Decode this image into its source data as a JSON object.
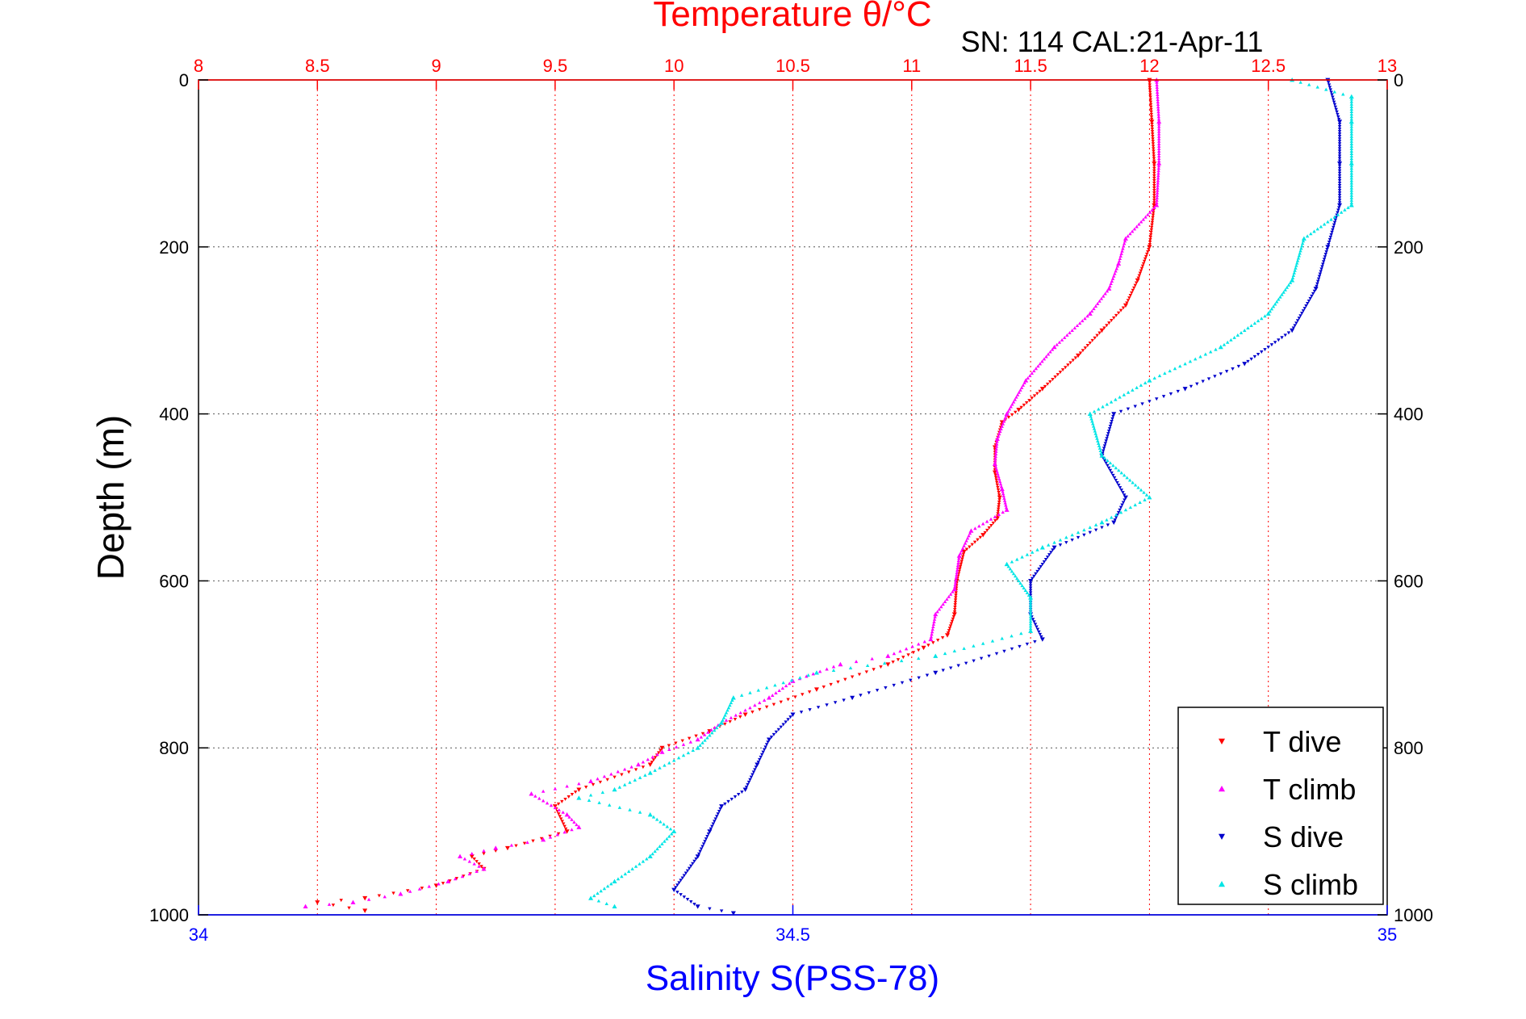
{
  "chart_data": {
    "type": "scatter",
    "title_top": "Temperature θ/°C",
    "subtitle": "SN: 114  CAL:21-Apr-11",
    "ylabel": "Depth (m)",
    "xlabel_bottom": "Salinity S(PSS-78)",
    "y_axis": {
      "range": [
        0,
        1000
      ],
      "reversed": true,
      "ticks": [
        0,
        200,
        400,
        600,
        800,
        1000
      ]
    },
    "x_top": {
      "range": [
        8,
        13
      ],
      "ticks": [
        "8",
        "8.5",
        "9",
        "9.5",
        "10",
        "10.5",
        "11",
        "11.5",
        "12",
        "12.5",
        "13"
      ]
    },
    "x_bottom": {
      "range": [
        34,
        35
      ],
      "ticks": [
        "34",
        "34.5",
        "35"
      ]
    },
    "grid": true,
    "legend_position": "bottom-right",
    "colors": {
      "temp_axis": "#ff0000",
      "sal_axis": "#0000ff",
      "t_dive": "#ff0000",
      "t_climb": "#ff00ff",
      "s_dive": "#0000cc",
      "s_climb": "#00e5e5"
    },
    "series": [
      {
        "name": "T dive",
        "axis": "top",
        "marker": "triangle-down",
        "color": "#ff0000",
        "points": [
          [
            12.0,
            0
          ],
          [
            12.01,
            50
          ],
          [
            12.02,
            100
          ],
          [
            12.02,
            150
          ],
          [
            12.0,
            200
          ],
          [
            11.95,
            240
          ],
          [
            11.9,
            270
          ],
          [
            11.8,
            300
          ],
          [
            11.7,
            330
          ],
          [
            11.55,
            370
          ],
          [
            11.45,
            395
          ],
          [
            11.38,
            410
          ],
          [
            11.35,
            440
          ],
          [
            11.35,
            470
          ],
          [
            11.37,
            500
          ],
          [
            11.36,
            525
          ],
          [
            11.3,
            545
          ],
          [
            11.22,
            565
          ],
          [
            11.19,
            600
          ],
          [
            11.18,
            640
          ],
          [
            11.15,
            665
          ],
          [
            11.05,
            680
          ],
          [
            10.9,
            700
          ],
          [
            10.6,
            730
          ],
          [
            10.3,
            760
          ],
          [
            10.15,
            780
          ],
          [
            9.95,
            800
          ],
          [
            9.9,
            820
          ],
          [
            9.6,
            850
          ],
          [
            9.5,
            870
          ],
          [
            9.55,
            900
          ],
          [
            9.3,
            920
          ],
          [
            9.15,
            930
          ],
          [
            9.2,
            945
          ],
          [
            9.0,
            965
          ],
          [
            8.7,
            980
          ],
          [
            8.5,
            985
          ],
          [
            8.7,
            995
          ]
        ]
      },
      {
        "name": "T climb",
        "axis": "top",
        "marker": "triangle-up",
        "color": "#ff00ff",
        "points": [
          [
            12.03,
            0
          ],
          [
            12.04,
            50
          ],
          [
            12.04,
            100
          ],
          [
            12.03,
            150
          ],
          [
            11.9,
            190
          ],
          [
            11.87,
            220
          ],
          [
            11.83,
            250
          ],
          [
            11.75,
            280
          ],
          [
            11.6,
            320
          ],
          [
            11.48,
            360
          ],
          [
            11.4,
            400
          ],
          [
            11.36,
            430
          ],
          [
            11.35,
            460
          ],
          [
            11.38,
            490
          ],
          [
            11.4,
            515
          ],
          [
            11.25,
            540
          ],
          [
            11.2,
            570
          ],
          [
            11.18,
            610
          ],
          [
            11.1,
            640
          ],
          [
            11.08,
            670
          ],
          [
            10.9,
            690
          ],
          [
            10.7,
            700
          ],
          [
            10.5,
            720
          ],
          [
            10.4,
            740
          ],
          [
            10.2,
            770
          ],
          [
            10.1,
            790
          ],
          [
            9.95,
            805
          ],
          [
            9.85,
            820
          ],
          [
            9.65,
            840
          ],
          [
            9.4,
            855
          ],
          [
            9.55,
            880
          ],
          [
            9.6,
            895
          ],
          [
            9.45,
            910
          ],
          [
            9.25,
            920
          ],
          [
            9.1,
            930
          ],
          [
            9.2,
            945
          ],
          [
            9.05,
            960
          ],
          [
            8.85,
            975
          ],
          [
            8.65,
            985
          ],
          [
            8.45,
            990
          ]
        ]
      },
      {
        "name": "S dive",
        "axis": "bottom",
        "marker": "triangle-down",
        "color": "#0000cc",
        "points": [
          [
            34.95,
            0
          ],
          [
            34.96,
            50
          ],
          [
            34.96,
            100
          ],
          [
            34.96,
            150
          ],
          [
            34.95,
            200
          ],
          [
            34.94,
            250
          ],
          [
            34.92,
            300
          ],
          [
            34.88,
            340
          ],
          [
            34.83,
            370
          ],
          [
            34.77,
            400
          ],
          [
            34.76,
            450
          ],
          [
            34.78,
            500
          ],
          [
            34.77,
            530
          ],
          [
            34.72,
            560
          ],
          [
            34.7,
            600
          ],
          [
            34.7,
            640
          ],
          [
            34.71,
            670
          ],
          [
            34.62,
            710
          ],
          [
            34.55,
            740
          ],
          [
            34.5,
            760
          ],
          [
            34.48,
            790
          ],
          [
            34.47,
            820
          ],
          [
            34.46,
            850
          ],
          [
            34.44,
            870
          ],
          [
            34.43,
            900
          ],
          [
            34.42,
            930
          ],
          [
            34.4,
            970
          ],
          [
            34.42,
            990
          ],
          [
            34.45,
            998
          ]
        ]
      },
      {
        "name": "S climb",
        "axis": "bottom",
        "marker": "triangle-up",
        "color": "#00e5e5",
        "points": [
          [
            34.92,
            0
          ],
          [
            34.97,
            20
          ],
          [
            34.97,
            50
          ],
          [
            34.97,
            100
          ],
          [
            34.97,
            150
          ],
          [
            34.93,
            190
          ],
          [
            34.92,
            240
          ],
          [
            34.9,
            280
          ],
          [
            34.86,
            320
          ],
          [
            34.8,
            360
          ],
          [
            34.75,
            400
          ],
          [
            34.76,
            450
          ],
          [
            34.8,
            500
          ],
          [
            34.76,
            530
          ],
          [
            34.71,
            560
          ],
          [
            34.68,
            580
          ],
          [
            34.7,
            620
          ],
          [
            34.7,
            660
          ],
          [
            34.62,
            690
          ],
          [
            34.52,
            710
          ],
          [
            34.45,
            740
          ],
          [
            34.44,
            770
          ],
          [
            34.42,
            800
          ],
          [
            34.38,
            830
          ],
          [
            34.35,
            850
          ],
          [
            34.32,
            860
          ],
          [
            34.38,
            880
          ],
          [
            34.4,
            900
          ],
          [
            34.38,
            930
          ],
          [
            34.35,
            960
          ],
          [
            34.33,
            980
          ],
          [
            34.35,
            990
          ]
        ]
      }
    ]
  }
}
